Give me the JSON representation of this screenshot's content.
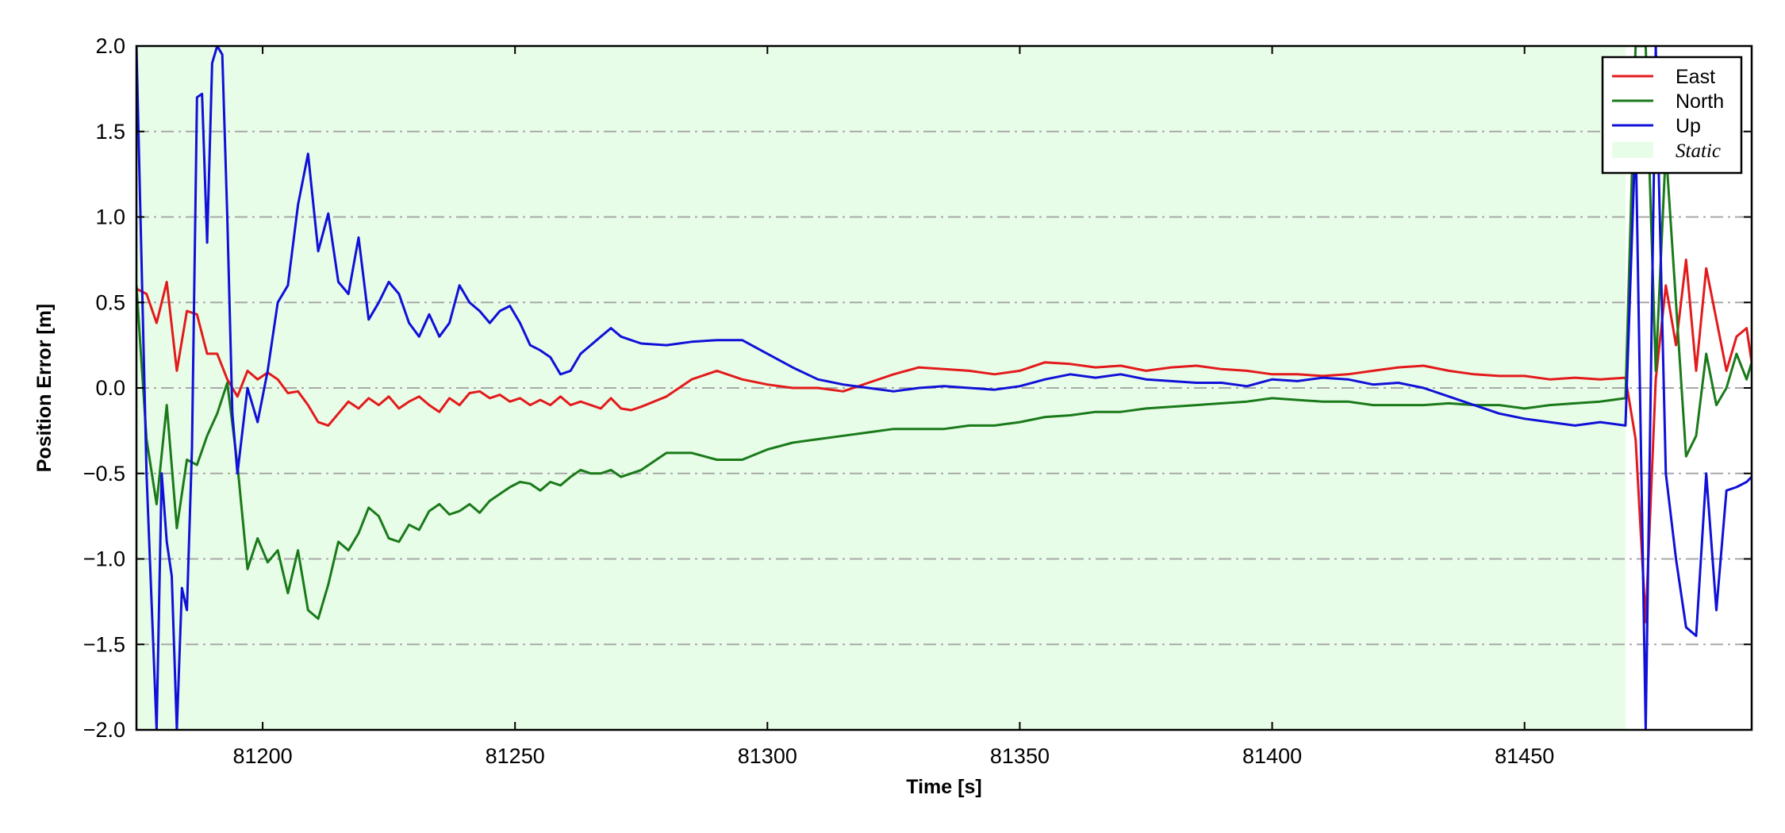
{
  "chart_data": {
    "type": "line",
    "title": "",
    "xlabel": "Time [s]",
    "ylabel": "Position Error [m]",
    "xlim": [
      81175,
      81495
    ],
    "ylim": [
      -2.0,
      2.0
    ],
    "x_ticks": [
      81200,
      81250,
      81300,
      81350,
      81400,
      81450
    ],
    "x_tick_labels": [
      "81200",
      "81250",
      "81300",
      "81350",
      "81400",
      "81450"
    ],
    "y_ticks": [
      -2.0,
      -1.5,
      -1.0,
      -0.5,
      0.0,
      0.5,
      1.0,
      1.5,
      2.0
    ],
    "y_tick_labels": [
      "−2.0",
      "−1.5",
      "−1.0",
      "−0.5",
      "0.0",
      "0.5",
      "1.0",
      "1.5",
      "2.0"
    ],
    "grid": "horizontal dash-dot",
    "legend_position": "top-right",
    "shaded_region": {
      "label": "Static",
      "x_start": 81175,
      "x_end": 81470,
      "color": "#e8fde8"
    },
    "series": [
      {
        "name": "East",
        "color": "#e31a1c",
        "x": [
          81175,
          81177,
          81179,
          81181,
          81183,
          81185,
          81187,
          81189,
          81191,
          81193,
          81195,
          81197,
          81199,
          81201,
          81203,
          81205,
          81207,
          81209,
          81211,
          81213,
          81215,
          81217,
          81219,
          81221,
          81223,
          81225,
          81227,
          81229,
          81231,
          81233,
          81235,
          81237,
          81239,
          81241,
          81243,
          81245,
          81247,
          81249,
          81251,
          81253,
          81255,
          81257,
          81259,
          81261,
          81263,
          81265,
          81267,
          81269,
          81271,
          81273,
          81275,
          81280,
          81285,
          81290,
          81295,
          81300,
          81305,
          81310,
          81315,
          81320,
          81325,
          81330,
          81335,
          81340,
          81345,
          81350,
          81355,
          81360,
          81365,
          81370,
          81375,
          81380,
          81385,
          81390,
          81395,
          81400,
          81405,
          81410,
          81415,
          81420,
          81425,
          81430,
          81435,
          81440,
          81445,
          81450,
          81455,
          81460,
          81465,
          81470,
          81472,
          81474,
          81476,
          81478,
          81480,
          81482,
          81484,
          81486,
          81488,
          81490,
          81492,
          81494,
          81495
        ],
        "y": [
          0.58,
          0.55,
          0.38,
          0.62,
          0.1,
          0.45,
          0.43,
          0.2,
          0.2,
          0.05,
          -0.05,
          0.1,
          0.05,
          0.09,
          0.05,
          -0.03,
          -0.02,
          -0.1,
          -0.2,
          -0.22,
          -0.15,
          -0.08,
          -0.12,
          -0.06,
          -0.1,
          -0.05,
          -0.12,
          -0.08,
          -0.05,
          -0.1,
          -0.14,
          -0.06,
          -0.1,
          -0.03,
          -0.02,
          -0.06,
          -0.04,
          -0.08,
          -0.06,
          -0.1,
          -0.07,
          -0.1,
          -0.05,
          -0.1,
          -0.08,
          -0.1,
          -0.12,
          -0.06,
          -0.12,
          -0.13,
          -0.11,
          -0.05,
          0.05,
          0.1,
          0.05,
          0.02,
          0.0,
          0.0,
          -0.02,
          0.03,
          0.08,
          0.12,
          0.11,
          0.1,
          0.08,
          0.1,
          0.15,
          0.14,
          0.12,
          0.13,
          0.1,
          0.12,
          0.13,
          0.11,
          0.1,
          0.08,
          0.08,
          0.07,
          0.08,
          0.1,
          0.12,
          0.13,
          0.1,
          0.08,
          0.07,
          0.07,
          0.05,
          0.06,
          0.05,
          0.06,
          -0.3,
          -1.37,
          0.05,
          0.6,
          0.25,
          0.75,
          0.1,
          0.7,
          0.4,
          0.1,
          0.3,
          0.35,
          0.15
        ]
      },
      {
        "name": "North",
        "color": "#1a7a1a",
        "x": [
          81175,
          81177,
          81179,
          81181,
          81183,
          81185,
          81187,
          81189,
          81191,
          81193,
          81195,
          81197,
          81199,
          81201,
          81203,
          81205,
          81207,
          81209,
          81211,
          81213,
          81215,
          81217,
          81219,
          81221,
          81223,
          81225,
          81227,
          81229,
          81231,
          81233,
          81235,
          81237,
          81239,
          81241,
          81243,
          81245,
          81247,
          81249,
          81251,
          81253,
          81255,
          81257,
          81259,
          81261,
          81263,
          81265,
          81267,
          81269,
          81271,
          81273,
          81275,
          81280,
          81285,
          81290,
          81295,
          81300,
          81305,
          81310,
          81315,
          81320,
          81325,
          81330,
          81335,
          81340,
          81345,
          81350,
          81355,
          81360,
          81365,
          81370,
          81375,
          81380,
          81385,
          81390,
          81395,
          81400,
          81405,
          81410,
          81415,
          81420,
          81425,
          81430,
          81435,
          81440,
          81445,
          81450,
          81455,
          81460,
          81465,
          81470,
          81472,
          81474,
          81476,
          81478,
          81480,
          81482,
          81484,
          81486,
          81488,
          81490,
          81492,
          81494,
          81495
        ],
        "y": [
          0.6,
          -0.3,
          -0.68,
          -0.1,
          -0.82,
          -0.42,
          -0.45,
          -0.28,
          -0.15,
          0.03,
          -0.45,
          -1.06,
          -0.88,
          -1.02,
          -0.95,
          -1.2,
          -0.95,
          -1.3,
          -1.35,
          -1.15,
          -0.9,
          -0.95,
          -0.85,
          -0.7,
          -0.75,
          -0.88,
          -0.9,
          -0.8,
          -0.83,
          -0.72,
          -0.68,
          -0.74,
          -0.72,
          -0.68,
          -0.73,
          -0.66,
          -0.62,
          -0.58,
          -0.55,
          -0.56,
          -0.6,
          -0.55,
          -0.57,
          -0.52,
          -0.48,
          -0.5,
          -0.5,
          -0.48,
          -0.52,
          -0.5,
          -0.48,
          -0.38,
          -0.38,
          -0.42,
          -0.42,
          -0.36,
          -0.32,
          -0.3,
          -0.28,
          -0.26,
          -0.24,
          -0.24,
          -0.24,
          -0.22,
          -0.22,
          -0.2,
          -0.17,
          -0.16,
          -0.14,
          -0.14,
          -0.12,
          -0.11,
          -0.1,
          -0.09,
          -0.08,
          -0.06,
          -0.07,
          -0.08,
          -0.08,
          -0.1,
          -0.1,
          -0.1,
          -0.09,
          -0.1,
          -0.1,
          -0.12,
          -0.1,
          -0.09,
          -0.08,
          -0.06,
          2.0,
          2.0,
          0.1,
          1.4,
          0.5,
          -0.4,
          -0.28,
          0.2,
          -0.1,
          0.0,
          0.2,
          0.05,
          0.15
        ]
      },
      {
        "name": "Up",
        "color": "#1010d8",
        "x": [
          81175,
          81177,
          81179,
          81180,
          81181,
          81182,
          81183,
          81184,
          81185,
          81186,
          81187,
          81188,
          81189,
          81190,
          81191,
          81192,
          81193,
          81194,
          81195,
          81197,
          81199,
          81201,
          81203,
          81205,
          81207,
          81209,
          81211,
          81213,
          81215,
          81217,
          81219,
          81221,
          81223,
          81225,
          81227,
          81229,
          81231,
          81233,
          81235,
          81237,
          81239,
          81241,
          81243,
          81245,
          81247,
          81249,
          81251,
          81253,
          81255,
          81257,
          81259,
          81261,
          81263,
          81265,
          81267,
          81269,
          81271,
          81273,
          81275,
          81280,
          81285,
          81290,
          81295,
          81300,
          81305,
          81310,
          81315,
          81320,
          81325,
          81330,
          81335,
          81340,
          81345,
          81350,
          81355,
          81360,
          81365,
          81370,
          81375,
          81380,
          81385,
          81390,
          81395,
          81400,
          81405,
          81410,
          81415,
          81420,
          81425,
          81430,
          81435,
          81440,
          81445,
          81450,
          81455,
          81460,
          81465,
          81470,
          81472,
          81474,
          81476,
          81478,
          81480,
          81482,
          81484,
          81486,
          81488,
          81490,
          81492,
          81494,
          81495
        ],
        "y": [
          2.0,
          -0.5,
          -2.0,
          -0.5,
          -0.9,
          -1.1,
          -2.0,
          -1.17,
          -1.3,
          -0.35,
          1.7,
          1.72,
          0.85,
          1.9,
          2.0,
          1.95,
          1.0,
          -0.15,
          -0.5,
          0.0,
          -0.2,
          0.1,
          0.5,
          0.6,
          1.07,
          1.37,
          0.8,
          1.02,
          0.62,
          0.55,
          0.88,
          0.4,
          0.5,
          0.62,
          0.55,
          0.38,
          0.3,
          0.43,
          0.3,
          0.38,
          0.6,
          0.5,
          0.45,
          0.38,
          0.45,
          0.48,
          0.38,
          0.25,
          0.22,
          0.18,
          0.08,
          0.1,
          0.2,
          0.25,
          0.3,
          0.35,
          0.3,
          0.28,
          0.26,
          0.25,
          0.27,
          0.28,
          0.28,
          0.2,
          0.12,
          0.05,
          0.02,
          0.0,
          -0.02,
          0.0,
          0.01,
          0.0,
          -0.01,
          0.01,
          0.05,
          0.08,
          0.06,
          0.08,
          0.05,
          0.04,
          0.03,
          0.03,
          0.01,
          0.05,
          0.04,
          0.06,
          0.05,
          0.02,
          0.03,
          0.0,
          -0.05,
          -0.1,
          -0.15,
          -0.18,
          -0.2,
          -0.22,
          -0.2,
          -0.22,
          1.5,
          -2.0,
          2.0,
          -0.5,
          -1.0,
          -1.4,
          -1.45,
          -0.5,
          -1.3,
          -0.6,
          -0.58,
          -0.55,
          -0.52
        ]
      }
    ]
  }
}
